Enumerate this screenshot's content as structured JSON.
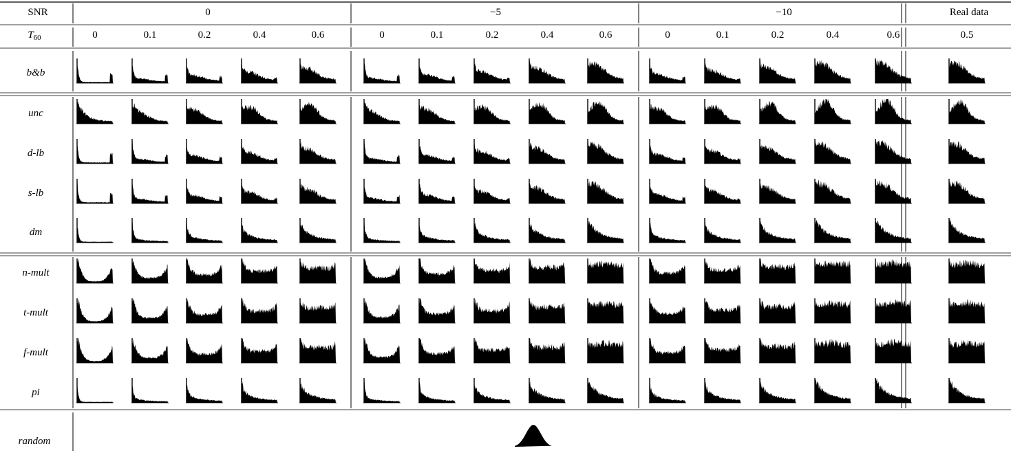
{
  "header": {
    "snr_label": "SNR",
    "t60_label_main": "T",
    "t60_label_sub": "60",
    "snr_groups": [
      "0",
      "−5",
      "−10"
    ],
    "real_label": "Real data",
    "t60_values": [
      "0",
      "0.1",
      "0.2",
      "0.4",
      "0.6"
    ],
    "real_t60": "0.5"
  },
  "rows": [
    {
      "label": "b&b",
      "profile": "spike-r-low"
    },
    {
      "label": "unc",
      "profile": "decay-slow"
    },
    {
      "label": "d-lb",
      "profile": "spike-r-low"
    },
    {
      "label": "s-lb",
      "profile": "spike-r-low"
    },
    {
      "label": "dm",
      "profile": "spike"
    },
    {
      "label": "n-mult",
      "profile": "u-shape"
    },
    {
      "label": "t-mult",
      "profile": "u-shape"
    },
    {
      "label": "f-mult",
      "profile": "u-shape"
    },
    {
      "label": "pi",
      "profile": "spike"
    }
  ],
  "random_row": {
    "label": "random",
    "profile": "bell"
  }
}
